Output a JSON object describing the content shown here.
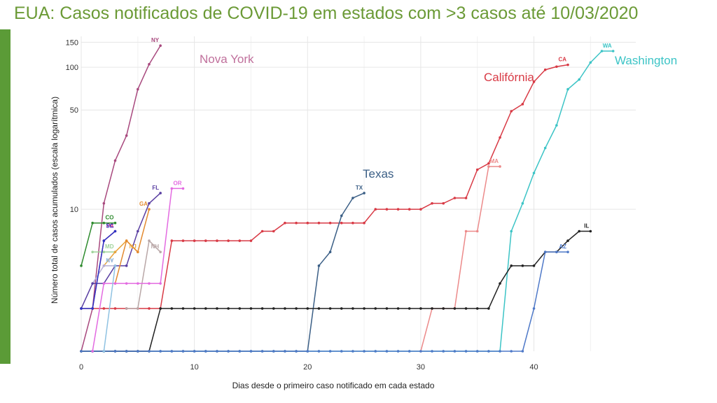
{
  "title": "EUA: Casos notificados de COVID-19 em estados com >3 casos até 10/03/2020",
  "colors": {
    "title": "#6b9a36",
    "side_bar": "#5b9b37",
    "grid": "#e6e6e6"
  },
  "chart_data": {
    "type": "line",
    "xlabel": "Dias desde o primeiro caso notificado em cada estado",
    "ylabel": "Número total de casos acumulados (escala logarítmica)",
    "y_scale": "log",
    "xlim": [
      0,
      49
    ],
    "ylim": [
      1,
      165
    ],
    "grid": true,
    "legend": "none",
    "x_ticks": [
      0,
      10,
      20,
      30,
      40
    ],
    "y_ticks": [
      10,
      50,
      100,
      150
    ],
    "series": [
      {
        "name": "NY",
        "color": "#a8497e",
        "x": [
          0,
          1,
          2,
          3,
          4,
          5,
          6,
          7
        ],
        "y": [
          1,
          2,
          11,
          22,
          33,
          70,
          105,
          142
        ]
      },
      {
        "name": "CA",
        "color": "#d83a45",
        "x": [
          0,
          1,
          2,
          3,
          4,
          5,
          6,
          7,
          8,
          9,
          10,
          11,
          12,
          13,
          14,
          15,
          16,
          17,
          18,
          19,
          20,
          21,
          22,
          23,
          24,
          25,
          26,
          27,
          28,
          29,
          30,
          31,
          32,
          33,
          34,
          35,
          36,
          37,
          38,
          39,
          40,
          41,
          42,
          43
        ],
        "y": [
          2,
          2,
          2,
          2,
          2,
          2,
          2,
          2,
          6,
          6,
          6,
          6,
          6,
          6,
          6,
          6,
          7,
          7,
          8,
          8,
          8,
          8,
          8,
          8,
          8,
          8,
          10,
          10,
          10,
          10,
          10,
          11,
          11,
          12,
          12,
          19,
          21,
          32,
          49,
          55,
          79,
          96,
          101,
          104
        ]
      },
      {
        "name": "WA",
        "color": "#3cc4c6",
        "x": [
          0,
          1,
          2,
          3,
          4,
          5,
          6,
          7,
          8,
          9,
          10,
          11,
          12,
          13,
          14,
          15,
          16,
          17,
          18,
          19,
          20,
          21,
          22,
          23,
          24,
          25,
          26,
          27,
          28,
          29,
          30,
          31,
          32,
          33,
          34,
          35,
          36,
          37,
          38,
          39,
          40,
          41,
          42,
          43,
          44,
          45,
          46,
          47
        ],
        "y": [
          1,
          1,
          1,
          1,
          1,
          1,
          1,
          1,
          1,
          1,
          1,
          1,
          1,
          1,
          1,
          1,
          1,
          1,
          1,
          1,
          1,
          1,
          1,
          1,
          1,
          1,
          1,
          1,
          1,
          1,
          1,
          1,
          1,
          1,
          1,
          1,
          1,
          1,
          7,
          11,
          18,
          27,
          39,
          70,
          82,
          108,
          130,
          130
        ]
      },
      {
        "name": "TX",
        "color": "#3b5f86",
        "x": [
          0,
          1,
          2,
          3,
          4,
          5,
          6,
          7,
          8,
          9,
          10,
          11,
          12,
          13,
          14,
          15,
          16,
          17,
          18,
          19,
          20,
          21,
          22,
          23,
          24,
          25
        ],
        "y": [
          1,
          1,
          1,
          1,
          1,
          1,
          1,
          1,
          1,
          1,
          1,
          1,
          1,
          1,
          1,
          1,
          1,
          1,
          1,
          1,
          1,
          4,
          5,
          9,
          12,
          13
        ]
      },
      {
        "name": "MA",
        "color": "#ec8a8a",
        "x": [
          30,
          31,
          32,
          33,
          34,
          35,
          36,
          37
        ],
        "y": [
          1,
          2,
          2,
          2,
          7,
          7,
          20,
          20
        ]
      },
      {
        "name": "IL",
        "color": "#222222",
        "x": [
          0,
          1,
          2,
          3,
          4,
          5,
          6,
          7,
          8,
          9,
          10,
          11,
          12,
          13,
          14,
          15,
          16,
          17,
          18,
          19,
          20,
          21,
          22,
          23,
          24,
          25,
          26,
          27,
          28,
          29,
          30,
          31,
          32,
          33,
          34,
          35,
          36,
          37,
          38,
          39,
          40,
          41,
          42,
          43,
          44,
          45
        ],
        "y": [
          1,
          1,
          1,
          1,
          1,
          1,
          1,
          2,
          2,
          2,
          2,
          2,
          2,
          2,
          2,
          2,
          2,
          2,
          2,
          2,
          2,
          2,
          2,
          2,
          2,
          2,
          2,
          2,
          2,
          2,
          2,
          2,
          2,
          2,
          2,
          2,
          2,
          3,
          4,
          4,
          4,
          5,
          5,
          6,
          7,
          7
        ]
      },
      {
        "name": "AZ",
        "color": "#4f79c8",
        "x": [
          0,
          1,
          2,
          3,
          4,
          5,
          6,
          7,
          8,
          9,
          10,
          11,
          12,
          13,
          14,
          15,
          16,
          17,
          18,
          19,
          20,
          21,
          22,
          23,
          24,
          25,
          26,
          27,
          28,
          29,
          30,
          31,
          32,
          33,
          34,
          35,
          36,
          37,
          38,
          39,
          40,
          41,
          42,
          43
        ],
        "y": [
          1,
          1,
          1,
          1,
          1,
          1,
          1,
          1,
          1,
          1,
          1,
          1,
          1,
          1,
          1,
          1,
          1,
          1,
          1,
          1,
          1,
          1,
          1,
          1,
          1,
          1,
          1,
          1,
          1,
          1,
          1,
          1,
          1,
          1,
          1,
          1,
          1,
          1,
          1,
          1,
          2,
          5,
          5,
          5
        ]
      },
      {
        "name": "CO",
        "color": "#2e8b2e",
        "x": [
          0,
          1,
          2,
          3
        ],
        "y": [
          4,
          8,
          8,
          8
        ]
      },
      {
        "name": "PA",
        "color": "#e0287d",
        "x": [
          1,
          2,
          3
        ],
        "y": [
          2,
          6,
          7
        ]
      },
      {
        "name": "MD",
        "color": "#9fd39a",
        "x": [
          1,
          2,
          3
        ],
        "y": [
          5,
          5,
          5
        ]
      },
      {
        "name": "NJ",
        "color": "#e8a33c",
        "x": [
          2,
          3,
          4,
          5
        ],
        "y": [
          4,
          5,
          6,
          5
        ]
      },
      {
        "name": "NV",
        "color": "#b6b0d6",
        "x": [
          1,
          2,
          3
        ],
        "y": [
          3,
          4,
          4
        ]
      },
      {
        "name": "FL",
        "color": "#5a3fa2",
        "x": [
          0,
          1,
          2,
          3,
          4,
          5,
          6,
          7
        ],
        "y": [
          2,
          3,
          3,
          4,
          4,
          7,
          11,
          13
        ]
      },
      {
        "name": "GA",
        "color": "#e38a30",
        "x": [
          3,
          4,
          5,
          6
        ],
        "y": [
          3,
          6,
          5,
          10
        ]
      },
      {
        "name": "NH",
        "color": "#b9a7a7",
        "x": [
          4,
          5,
          6,
          7
        ],
        "y": [
          2,
          2,
          6,
          5
        ]
      },
      {
        "name": "OR",
        "color": "#e36ae1",
        "x": [
          1,
          2,
          3,
          4,
          5,
          6,
          7,
          8,
          9
        ],
        "y": [
          1,
          3,
          3,
          3,
          3,
          3,
          3,
          14,
          14
        ]
      },
      {
        "name": "SC",
        "color": "#2b34c4",
        "x": [
          0,
          1,
          2,
          3
        ],
        "y": [
          2,
          2,
          6,
          7
        ]
      },
      {
        "name": "KY",
        "color": "#8fc2e2",
        "x": [
          2,
          3
        ],
        "y": [
          1,
          4
        ]
      }
    ],
    "annotations": [
      {
        "text": "Nova York",
        "color": "#c0709c"
      },
      {
        "text": "Califórnia",
        "color": "#d83a45"
      },
      {
        "text": "Texas",
        "color": "#3b5f86"
      },
      {
        "text": "Washington",
        "color": "#3cc4c6"
      }
    ]
  }
}
